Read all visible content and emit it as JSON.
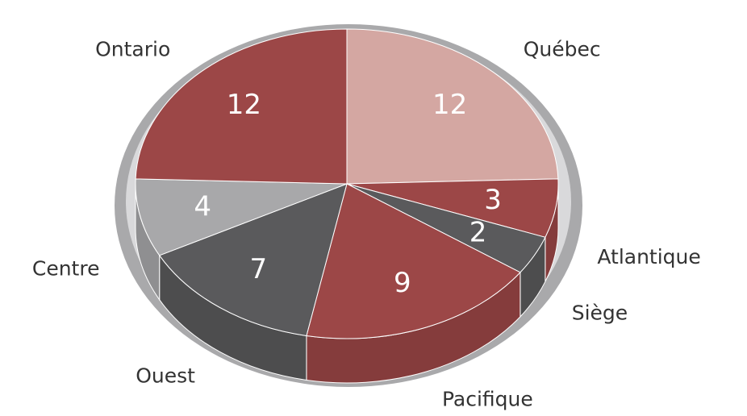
{
  "chart_data": {
    "type": "pie",
    "categories": [
      "Québec",
      "Atlantique",
      "Siège",
      "Pacifique",
      "Ouest",
      "Centre",
      "Ontario"
    ],
    "values": [
      12,
      3,
      2,
      9,
      7,
      4,
      12
    ],
    "colors": [
      "#d4a7a2",
      "#9c4747",
      "#5a5a5c",
      "#9c4747",
      "#5a5a5c",
      "#a8a8aa",
      "#9c4747"
    ]
  }
}
